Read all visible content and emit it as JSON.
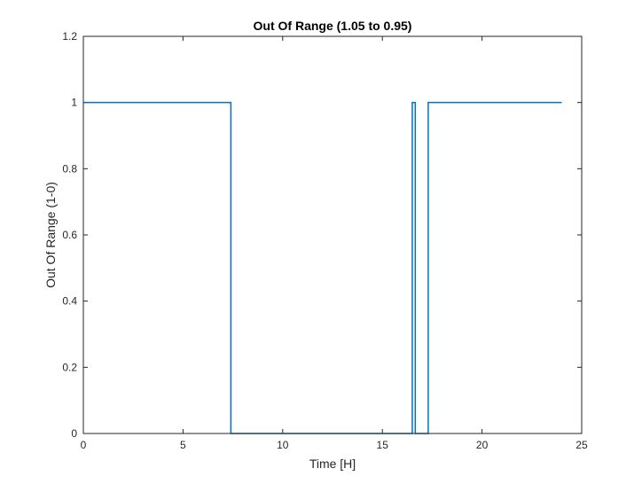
{
  "chart_data": {
    "type": "line",
    "title": "Out Of Range (1.05 to 0.95)",
    "xlabel": "Time [H]",
    "ylabel": "Out Of Range (1-0)",
    "xlim": [
      0,
      25
    ],
    "ylim": [
      0,
      1.2
    ],
    "xticks": [
      0,
      5,
      10,
      15,
      20,
      25
    ],
    "yticks": [
      0,
      0.2,
      0.4,
      0.6,
      0.8,
      1,
      1.2
    ],
    "xtick_labels": [
      "0",
      "5",
      "10",
      "15",
      "20",
      "25"
    ],
    "ytick_labels": [
      "0",
      "0.2",
      "0.4",
      "0.6",
      "0.8",
      "1",
      "1.2"
    ],
    "grid": false,
    "box": true,
    "colors": {
      "line": "#0072BD",
      "axes": "#262626"
    },
    "series": [
      {
        "step": "post",
        "x": [
          0,
          7.4,
          16.5,
          16.65,
          17.3,
          24
        ],
        "y": [
          1,
          0,
          1,
          0,
          1,
          1
        ]
      }
    ]
  }
}
